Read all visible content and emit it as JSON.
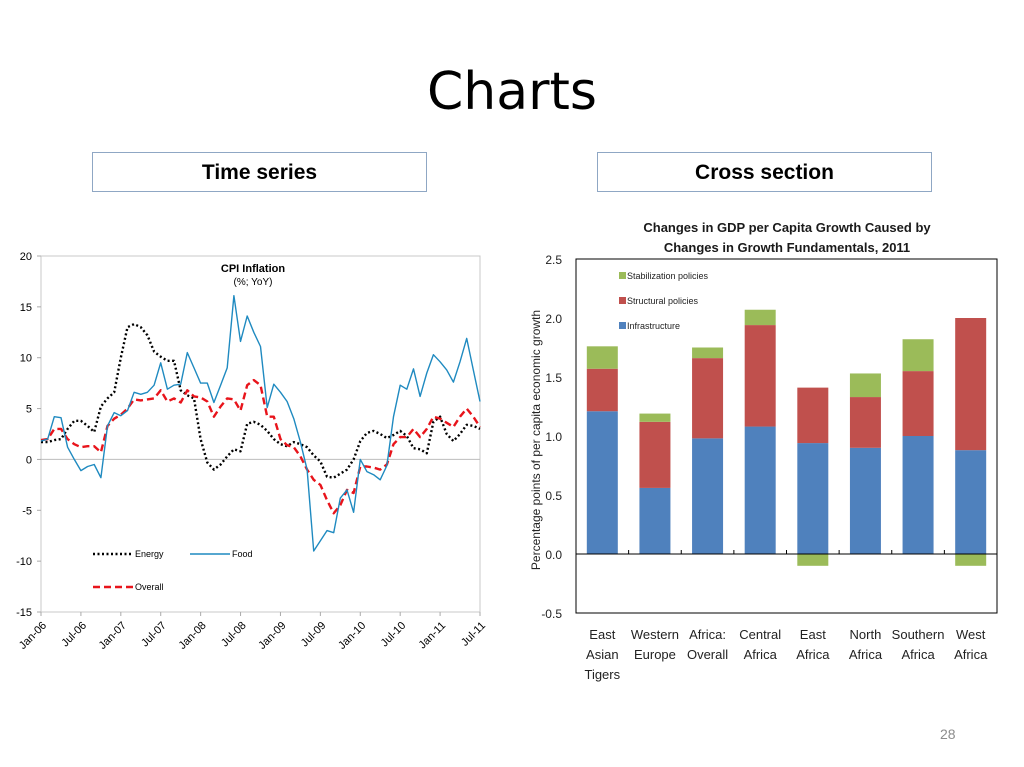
{
  "slide": {
    "title": "Charts",
    "left_box": "Time series",
    "right_box": "Cross section",
    "page_number": "28"
  },
  "chart_data": [
    {
      "type": "line",
      "title": "CPI Inflation",
      "subtitle": "(%; YoY)",
      "ylim": [
        -15,
        20
      ],
      "yticks": [
        20,
        15,
        10,
        5,
        0,
        -5,
        -10,
        -15
      ],
      "x_range": [
        "Jan-06",
        "Jul-11"
      ],
      "x_frequency": "monthly",
      "xtick_labels": [
        "Jan-06",
        "Jul-06",
        "Jan-07",
        "Jul-07",
        "Jan-08",
        "Jul-08",
        "Jan-09",
        "Jul-09",
        "Jan-10",
        "Jul-10",
        "Jan-11",
        "Jul-11"
      ],
      "legend_placement": "bottom-left",
      "grid": false,
      "series": [
        {
          "name": "Energy",
          "color": "#000000",
          "style": "dotted",
          "values": [
            1.7,
            1.7,
            1.9,
            2.0,
            3.0,
            3.8,
            3.8,
            3.3,
            2.7,
            5.2,
            6.0,
            6.6,
            10.0,
            13.0,
            13.3,
            13.0,
            12.2,
            10.6,
            10.1,
            9.7,
            9.7,
            6.8,
            6.3,
            6.0,
            2.0,
            -0.3,
            -1.0,
            -0.5,
            0.3,
            1.0,
            0.8,
            3.5,
            3.7,
            3.4,
            2.8,
            2.0,
            1.5,
            1.3,
            1.7,
            1.5,
            1.2,
            0.4,
            -0.2,
            -1.7,
            -1.8,
            -1.4,
            -1.0,
            0.0,
            1.8,
            2.6,
            2.8,
            2.5,
            2.1,
            2.4,
            2.8,
            2.3,
            1.1,
            1.0,
            0.6,
            3.7,
            4.2,
            2.5,
            1.8,
            2.5,
            3.4,
            3.3,
            3.0
          ]
        },
        {
          "name": "Food",
          "color": "#1f8ac0",
          "style": "solid",
          "values": [
            1.8,
            2.0,
            4.2,
            4.1,
            1.2,
            0.0,
            -1.1,
            -0.7,
            -0.5,
            -1.8,
            3.3,
            4.6,
            4.3,
            4.8,
            6.6,
            6.4,
            6.6,
            7.3,
            9.5,
            6.9,
            7.3,
            7.4,
            10.5,
            9.0,
            7.5,
            7.5,
            5.6,
            7.3,
            9.0,
            16.1,
            11.6,
            14.1,
            12.5,
            11.1,
            5.1,
            7.4,
            6.6,
            5.7,
            4.0,
            1.7,
            -1.0,
            -9.0,
            -8.0,
            -7.0,
            -7.2,
            -3.8,
            -3.0,
            -5.2,
            0.0,
            -1.2,
            -1.5,
            -2.0,
            -0.6,
            4.2,
            7.3,
            6.9,
            8.9,
            6.2,
            8.5,
            10.3,
            9.6,
            8.8,
            7.6,
            9.6,
            11.9,
            8.8,
            5.7
          ]
        },
        {
          "name": "Overall",
          "color": "#e8141b",
          "style": "dashed",
          "values": [
            1.9,
            2.0,
            3.0,
            3.0,
            2.0,
            1.5,
            1.2,
            1.3,
            1.3,
            0.7,
            3.3,
            4.0,
            4.4,
            5.0,
            5.9,
            5.8,
            5.9,
            6.0,
            6.8,
            5.7,
            6.0,
            5.6,
            6.8,
            6.2,
            6.1,
            5.7,
            4.2,
            5.2,
            6.0,
            5.9,
            4.8,
            7.3,
            7.8,
            7.3,
            4.2,
            4.2,
            2.0,
            1.4,
            1.2,
            0.3,
            -1.0,
            -2.0,
            -2.5,
            -4.0,
            -5.3,
            -4.5,
            -3.0,
            -3.3,
            -0.7,
            -0.7,
            -0.8,
            -1.0,
            -0.5,
            1.5,
            2.2,
            2.2,
            3.0,
            2.2,
            3.0,
            4.2,
            4.0,
            3.6,
            3.2,
            4.2,
            5.0,
            4.2,
            3.2
          ]
        }
      ]
    },
    {
      "type": "bar",
      "stacked": true,
      "title": "Changes in GDP per Capita Growth  Caused by Changes in Growth Fundamentals, 2011",
      "title_lines": [
        "Changes in GDP per Capita Growth  Caused by",
        "Changes in Growth Fundamentals, 2011"
      ],
      "ylabel": "Percentage points of per capita economic growth",
      "ylim": [
        -0.5,
        2.5
      ],
      "yticks": [
        "2.5",
        "2.0",
        "1.5",
        "1.0",
        "0.5",
        "0.0",
        "-0.5"
      ],
      "legend_placement": "top-left",
      "grid": false,
      "categories": [
        [
          "East",
          "Asian",
          "Tigers"
        ],
        [
          "Western",
          "Europe"
        ],
        [
          "Africa:",
          "Overall"
        ],
        [
          "Central",
          "Africa"
        ],
        [
          "East",
          "Africa"
        ],
        [
          "North",
          "Africa"
        ],
        [
          "Southern",
          "Africa"
        ],
        [
          "West",
          "Africa"
        ]
      ],
      "series": [
        {
          "name": "Infrastructure",
          "color": "#4f81bd",
          "values": [
            1.21,
            0.56,
            0.98,
            1.08,
            0.94,
            0.9,
            1.0,
            0.88
          ]
        },
        {
          "name": "Structural policies",
          "color": "#c0504d",
          "values": [
            0.36,
            0.56,
            0.68,
            0.86,
            0.47,
            0.43,
            0.55,
            1.12
          ]
        },
        {
          "name": "Stabilization policies",
          "color": "#9bbb59",
          "values": [
            0.19,
            0.07,
            0.09,
            0.13,
            -0.1,
            0.2,
            0.27,
            -0.1
          ]
        }
      ]
    }
  ]
}
